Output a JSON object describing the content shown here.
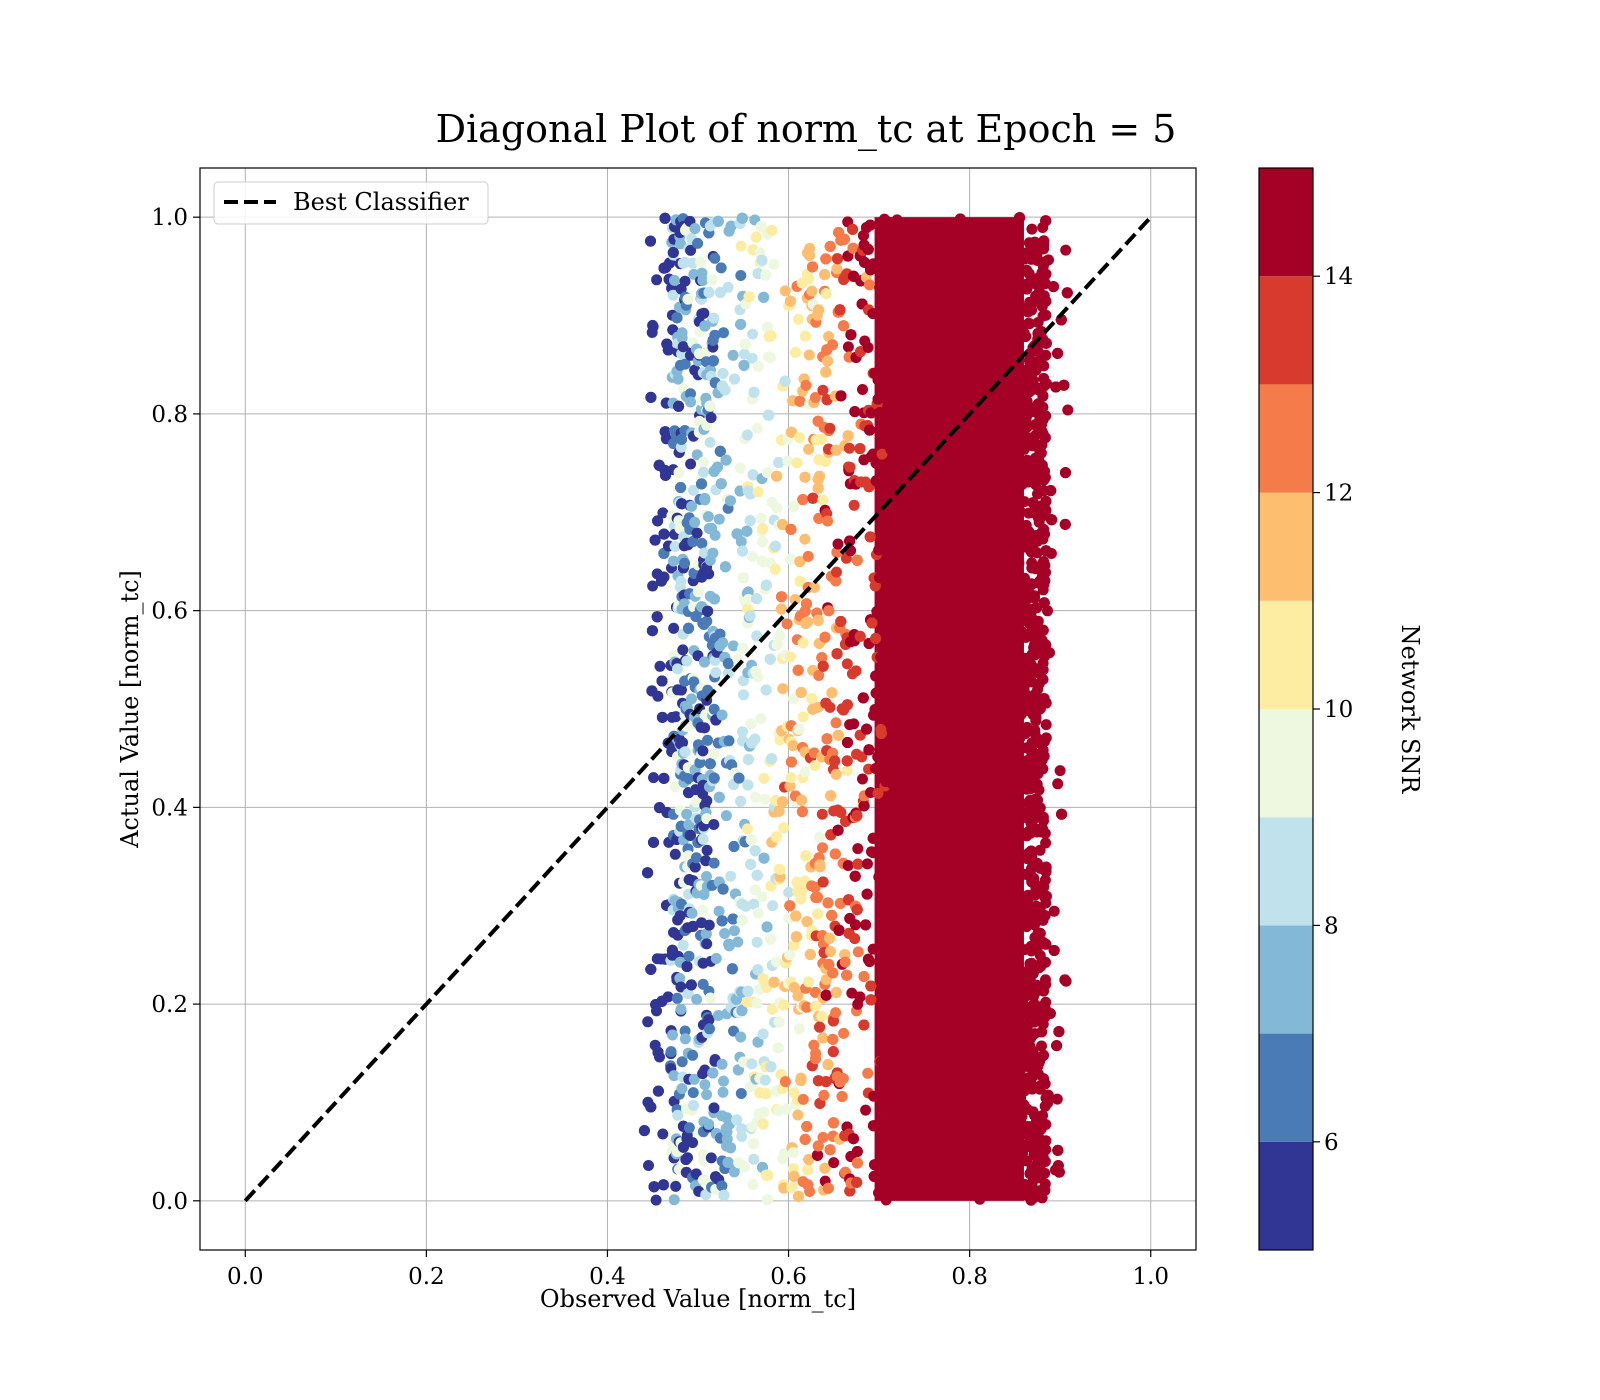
{
  "chart_data": {
    "type": "scatter",
    "title": "Diagonal Plot of norm_tc at Epoch = 5",
    "xlabel": "Observed Value [norm_tc]",
    "ylabel": "Actual Value [norm_tc]",
    "xlim": [
      -0.05,
      1.05
    ],
    "ylim": [
      -0.05,
      1.05
    ],
    "xticks": [
      "0.0",
      "0.2",
      "0.4",
      "0.6",
      "0.8",
      "1.0"
    ],
    "yticks": [
      "0.0",
      "0.2",
      "0.4",
      "0.6",
      "0.8",
      "1.0"
    ],
    "grid": true,
    "legend": {
      "placement": "upper-left",
      "entries": [
        "Best Classifier"
      ]
    },
    "reference_line": {
      "label": "Best Classifier",
      "x": [
        0.0,
        1.0
      ],
      "y": [
        0.0,
        1.0
      ],
      "style": "dashed",
      "color": "#000000"
    },
    "scatter_summary": {
      "x_range": [
        0.44,
        0.91
      ],
      "y_range": [
        0.0,
        1.0
      ],
      "trend": "SNR increases with observed value; low SNR (blue) near x=0.45–0.52, mid SNR (yellow/orange) near x=0.52–0.68, high SNR (dark red) dense band x=0.68–0.88"
    },
    "colorbar": {
      "label": "Network SNR",
      "range": [
        5,
        15
      ],
      "ticks": [
        "6",
        "8",
        "10",
        "12",
        "14"
      ],
      "tick_values": [
        6,
        8,
        10,
        12,
        14
      ],
      "bins": [
        {
          "from": 5,
          "to": 6,
          "color": "#313695"
        },
        {
          "from": 6,
          "to": 7,
          "color": "#4a7bb7"
        },
        {
          "from": 7,
          "to": 8,
          "color": "#83b8d7"
        },
        {
          "from": 8,
          "to": 9,
          "color": "#c0e2ed"
        },
        {
          "from": 9,
          "to": 10,
          "color": "#eef8e0"
        },
        {
          "from": 10,
          "to": 11,
          "color": "#fdeda3"
        },
        {
          "from": 11,
          "to": 12,
          "color": "#fdbe70"
        },
        {
          "from": 12,
          "to": 13,
          "color": "#f57c4a"
        },
        {
          "from": 13,
          "to": 14,
          "color": "#d83a2d"
        },
        {
          "from": 14,
          "to": 15,
          "color": "#a50026"
        }
      ]
    }
  }
}
